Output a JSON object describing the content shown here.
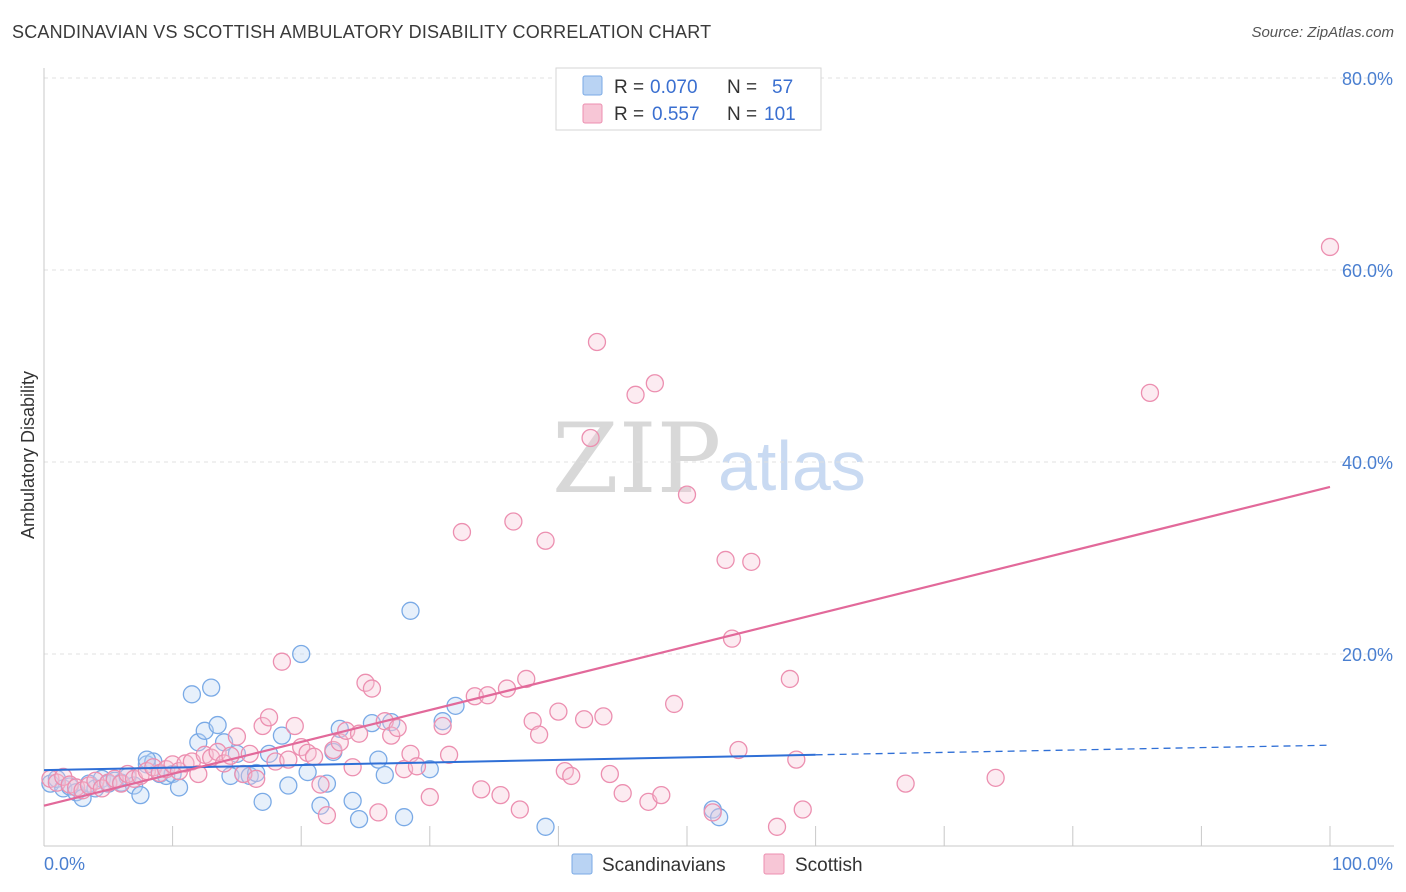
{
  "title": "SCANDINAVIAN VS SCOTTISH AMBULATORY DISABILITY CORRELATION CHART",
  "source": "Source: ZipAtlas.com",
  "watermark": {
    "zip": "ZIP",
    "atlas": "atlas"
  },
  "colors": {
    "blue": "#7aaae6",
    "blue_fill": "#b9d3f3",
    "blue_line": "#2f6fd6",
    "pink": "#ec8fb0",
    "pink_fill": "#f7c6d6",
    "pink_line": "#e2699a",
    "tick_text": "#4a7fd0",
    "grid": "#e0e0e0"
  },
  "legend": {
    "r_label": "R =",
    "n_label": "N =",
    "rows": [
      {
        "r": "0.070",
        "n": "57"
      },
      {
        "r": "0.557",
        "n": "101"
      }
    ]
  },
  "chart_data": {
    "type": "scatter",
    "title": "SCANDINAVIAN VS SCOTTISH AMBULATORY DISABILITY CORRELATION CHART",
    "xlabel": "",
    "ylabel": "Ambulatory Disability",
    "xlim": [
      0,
      100
    ],
    "ylim": [
      0,
      80
    ],
    "x_tick_labels": {
      "left": "0.0%",
      "right": "100.0%"
    },
    "y_ticks": [
      20,
      40,
      60,
      80
    ],
    "y_tick_labels": [
      "20.0%",
      "40.0%",
      "60.0%",
      "80.0%"
    ],
    "legend_bottom": [
      "Scandinavians",
      "Scottish"
    ],
    "series": [
      {
        "name": "Scandinavians",
        "r": 0.07,
        "n": 57,
        "trend": {
          "x0": 0,
          "y0": 7.9,
          "x1": 60,
          "y1": 9.5,
          "dash_x1": 100,
          "dash_y1": 10.5
        },
        "points": [
          [
            0.5,
            6.5
          ],
          [
            1,
            7
          ],
          [
            1.5,
            6
          ],
          [
            2,
            6.2
          ],
          [
            2.5,
            5.6
          ],
          [
            3,
            5
          ],
          [
            3.5,
            6.5
          ],
          [
            4,
            6
          ],
          [
            4.5,
            7
          ],
          [
            5,
            6.5
          ],
          [
            5.5,
            6.8
          ],
          [
            6,
            6.6
          ],
          [
            6.5,
            7.2
          ],
          [
            7,
            6.3
          ],
          [
            7.5,
            5.3
          ],
          [
            8,
            8.5
          ],
          [
            8.5,
            8.8
          ],
          [
            9,
            7.5
          ],
          [
            9.5,
            7.3
          ],
          [
            10,
            7.5
          ],
          [
            10.5,
            6.1
          ],
          [
            11.5,
            15.8
          ],
          [
            12,
            10.8
          ],
          [
            12.5,
            12
          ],
          [
            13,
            16.5
          ],
          [
            13.5,
            12.6
          ],
          [
            14,
            10.8
          ],
          [
            14.5,
            7.3
          ],
          [
            15,
            9.6
          ],
          [
            15.5,
            7.5
          ],
          [
            16,
            7.3
          ],
          [
            16.5,
            7.6
          ],
          [
            17,
            4.6
          ],
          [
            17.5,
            9.6
          ],
          [
            18.5,
            11.5
          ],
          [
            19,
            6.3
          ],
          [
            20,
            20
          ],
          [
            20.5,
            7.7
          ],
          [
            21.5,
            4.2
          ],
          [
            22,
            6.5
          ],
          [
            22.5,
            9.8
          ],
          [
            23,
            12.2
          ],
          [
            24,
            4.7
          ],
          [
            24.5,
            2.8
          ],
          [
            25.5,
            12.8
          ],
          [
            26,
            9
          ],
          [
            26.5,
            7.4
          ],
          [
            27,
            12.9
          ],
          [
            28,
            3
          ],
          [
            28.5,
            24.5
          ],
          [
            30,
            8
          ],
          [
            31,
            13
          ],
          [
            32,
            14.6
          ],
          [
            39,
            2
          ],
          [
            52,
            3.8
          ],
          [
            52.5,
            3
          ],
          [
            8,
            9
          ]
        ]
      },
      {
        "name": "Scottish",
        "r": 0.557,
        "n": 101,
        "trend": {
          "x0": 0,
          "y0": 4.2,
          "x1": 100,
          "y1": 37.4
        },
        "points": [
          [
            0.5,
            7
          ],
          [
            1,
            6.6
          ],
          [
            1.5,
            7.2
          ],
          [
            2,
            6.4
          ],
          [
            2.5,
            6.1
          ],
          [
            3,
            5.8
          ],
          [
            3.5,
            6.3
          ],
          [
            4,
            6.8
          ],
          [
            4.5,
            6
          ],
          [
            5,
            6.6
          ],
          [
            5.5,
            7
          ],
          [
            6,
            6.5
          ],
          [
            6.5,
            7.5
          ],
          [
            7,
            7
          ],
          [
            7.5,
            7.3
          ],
          [
            8,
            7.8
          ],
          [
            8.5,
            8.2
          ],
          [
            9,
            7.6
          ],
          [
            9.5,
            8
          ],
          [
            10,
            8.5
          ],
          [
            10.5,
            7.8
          ],
          [
            11,
            8.6
          ],
          [
            11.5,
            8.8
          ],
          [
            12,
            7.5
          ],
          [
            12.5,
            9.5
          ],
          [
            13,
            9.2
          ],
          [
            13.5,
            9.8
          ],
          [
            14,
            8.6
          ],
          [
            14.5,
            9.4
          ],
          [
            15,
            11.4
          ],
          [
            15.5,
            7.5
          ],
          [
            16,
            9.6
          ],
          [
            16.5,
            7
          ],
          [
            17,
            12.5
          ],
          [
            17.5,
            13.4
          ],
          [
            18,
            8.8
          ],
          [
            18.5,
            19.2
          ],
          [
            19,
            9
          ],
          [
            19.5,
            12.5
          ],
          [
            20,
            10.3
          ],
          [
            20.5,
            9.7
          ],
          [
            21,
            9.3
          ],
          [
            21.5,
            6.4
          ],
          [
            22,
            3.2
          ],
          [
            22.5,
            10
          ],
          [
            23,
            10.8
          ],
          [
            23.5,
            12
          ],
          [
            24,
            8.2
          ],
          [
            24.5,
            11.7
          ],
          [
            25,
            17
          ],
          [
            25.5,
            16.4
          ],
          [
            26,
            3.5
          ],
          [
            26.5,
            13
          ],
          [
            27,
            11.5
          ],
          [
            27.5,
            12.3
          ],
          [
            28,
            8
          ],
          [
            28.5,
            9.6
          ],
          [
            29,
            8.3
          ],
          [
            30,
            5.1
          ],
          [
            31,
            12.5
          ],
          [
            31.5,
            9.5
          ],
          [
            32.5,
            32.7
          ],
          [
            33.5,
            15.6
          ],
          [
            34,
            5.9
          ],
          [
            34.5,
            15.7
          ],
          [
            35.5,
            5.3
          ],
          [
            36,
            16.4
          ],
          [
            36.5,
            33.8
          ],
          [
            37,
            3.8
          ],
          [
            37.5,
            17.4
          ],
          [
            38,
            13
          ],
          [
            38.5,
            11.6
          ],
          [
            39,
            31.8
          ],
          [
            40,
            14
          ],
          [
            40.5,
            7.8
          ],
          [
            41,
            7.3
          ],
          [
            42,
            13.2
          ],
          [
            42.5,
            42.5
          ],
          [
            43,
            52.5
          ],
          [
            43.5,
            13.5
          ],
          [
            44,
            7.5
          ],
          [
            45,
            5.5
          ],
          [
            46,
            47
          ],
          [
            47,
            4.6
          ],
          [
            47.5,
            48.2
          ],
          [
            48,
            5.3
          ],
          [
            49,
            14.8
          ],
          [
            50,
            36.6
          ],
          [
            52,
            3.5
          ],
          [
            53,
            29.8
          ],
          [
            53.5,
            21.6
          ],
          [
            54,
            10
          ],
          [
            55,
            29.6
          ],
          [
            57,
            2
          ],
          [
            58.5,
            9
          ],
          [
            58,
            17.4
          ],
          [
            67,
            6.5
          ],
          [
            74,
            7.1
          ],
          [
            86,
            47.2
          ],
          [
            100,
            62.4
          ],
          [
            59,
            3.8
          ]
        ]
      }
    ]
  }
}
